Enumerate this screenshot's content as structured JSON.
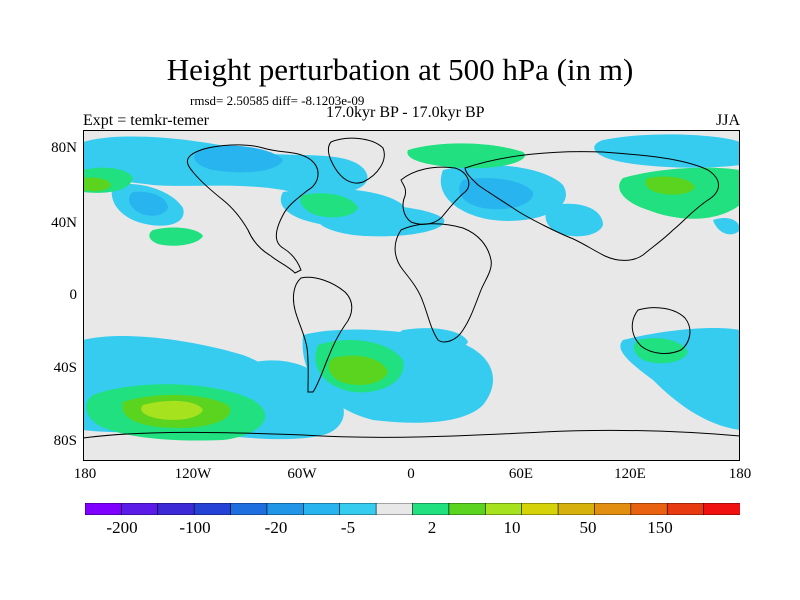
{
  "title": "Height perturbation at 500 hPa (in m)",
  "stats": "rmsd= 2.50585 diff= -8.1203e-09",
  "period": "17.0kyr BP - 17.0kyr BP",
  "experiment": "Expt = temkr-temer",
  "season": "JJA",
  "lat_ticks": [
    "80N",
    "40N",
    "0",
    "40S",
    "80S"
  ],
  "lon_ticks": [
    "180",
    "120W",
    "60W",
    "0",
    "60E",
    "120E",
    "180"
  ],
  "colorbar": {
    "colors": [
      "#7f00ff",
      "#5a1ce6",
      "#3b2ad6",
      "#2443d6",
      "#1f6ee0",
      "#2196e6",
      "#28b4ee",
      "#36ccf0",
      "#e8e8e8",
      "#20e080",
      "#5ad41f",
      "#a6e21e",
      "#d6d20a",
      "#d6b10b",
      "#e28e0e",
      "#e8620f",
      "#e83a10",
      "#f01010"
    ],
    "labels": [
      "-200",
      "-100",
      "-20",
      "-5",
      "2",
      "10",
      "50",
      "150"
    ]
  },
  "legend_colors": {
    "neutral": "#e8e8e8",
    "light_blue": "#36ccf0",
    "mid_blue": "#28b4ee",
    "teal_green": "#20e080",
    "green": "#5ad41f",
    "yellow_green": "#a6e21e"
  }
}
